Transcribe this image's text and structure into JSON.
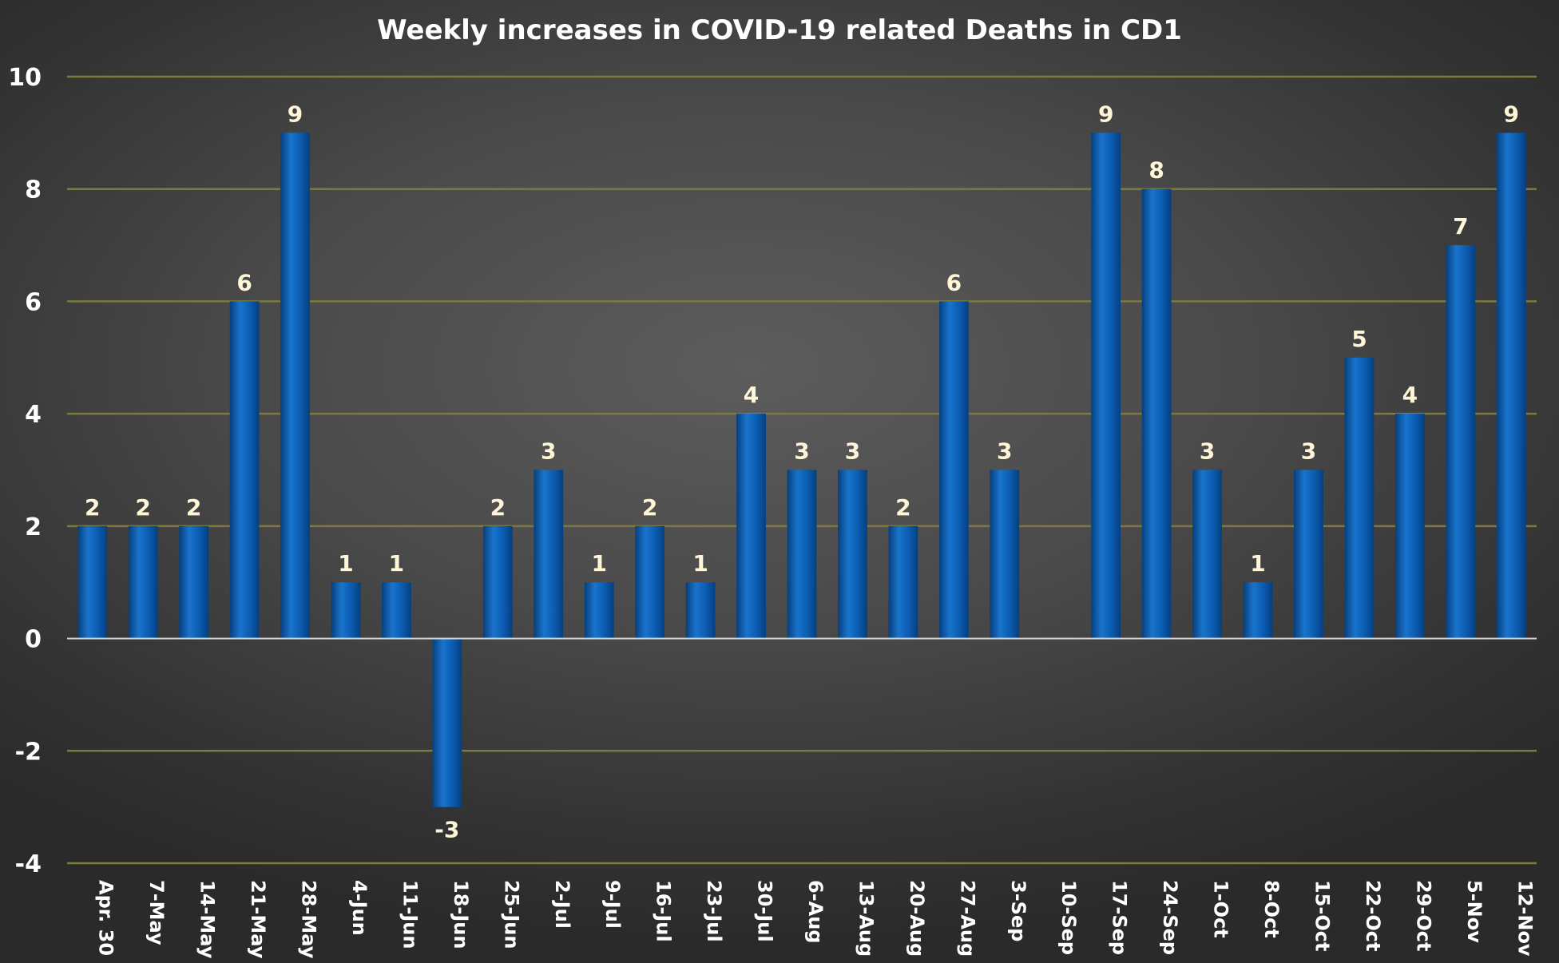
{
  "chart_data": {
    "type": "bar",
    "title": "Weekly increases in COVID-19 related Deaths in CD1",
    "xlabel": "",
    "ylabel": "",
    "ylim": [
      -4,
      10
    ],
    "yticks": [
      10,
      8,
      6,
      4,
      2,
      0,
      -2,
      -4
    ],
    "grid": true,
    "categories": [
      "Apr. 30",
      "7-May",
      "14-May",
      "21-May",
      "28-May",
      "4-Jun",
      "11-Jun",
      "18-Jun",
      "25-Jun",
      "2-Jul",
      "9-Jul",
      "16-Jul",
      "23-Jul",
      "30-Jul",
      "6-Aug",
      "13-Aug",
      "20-Aug",
      "27-Aug",
      "3-Sep",
      "10-Sep",
      "17-Sep",
      "24-Sep",
      "1-Oct",
      "8-Oct",
      "15-Oct",
      "22-Oct",
      "29-Oct",
      "5-Nov",
      "12-Nov"
    ],
    "values": [
      2,
      2,
      2,
      6,
      9,
      1,
      1,
      -3,
      2,
      3,
      1,
      2,
      1,
      4,
      3,
      3,
      2,
      6,
      3,
      null,
      9,
      8,
      3,
      1,
      3,
      5,
      4,
      7,
      9
    ],
    "colors": {
      "bar": "#0a5bb0",
      "bar_light": "#1a74cc",
      "bar_dark": "#063f7e",
      "grid": "#7d7a3c",
      "data_label": "#fff6d8"
    }
  }
}
